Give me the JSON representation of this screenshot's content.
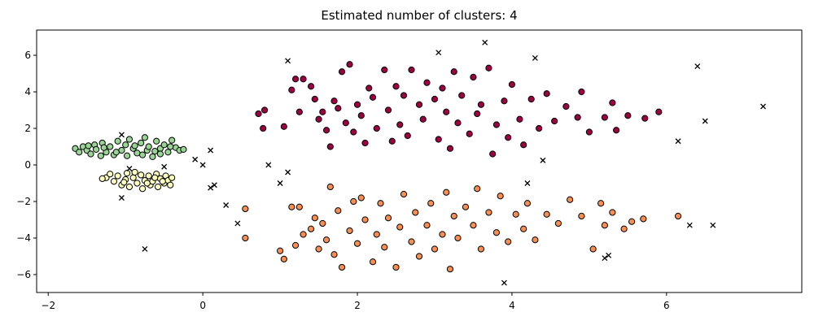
{
  "chart_data": {
    "type": "scatter",
    "title": "Estimated number of clusters: 4",
    "xlim": [
      -2.15,
      7.75
    ],
    "ylim": [
      -6.98,
      7.38
    ],
    "xticks": [
      {
        "value": -2,
        "label": "−2"
      },
      0,
      2,
      4,
      6
    ],
    "yticks": [
      {
        "value": -6,
        "label": "−6"
      },
      {
        "value": -4,
        "label": "−4"
      },
      {
        "value": -2,
        "label": "−2"
      },
      0,
      2,
      4,
      6
    ],
    "series": [
      {
        "color": "#9e0142",
        "marker": "o",
        "x": [
          0.72,
          0.78,
          0.8,
          1.05,
          1.15,
          1.2,
          1.25,
          1.3,
          1.4,
          1.45,
          1.5,
          1.55,
          1.6,
          1.65,
          1.7,
          1.75,
          1.8,
          1.85,
          1.9,
          1.95,
          2.0,
          2.05,
          2.1,
          2.15,
          2.2,
          2.25,
          2.35,
          2.4,
          2.45,
          2.5,
          2.55,
          2.6,
          2.65,
          2.7,
          2.8,
          2.85,
          2.9,
          3.0,
          3.05,
          3.1,
          3.15,
          3.2,
          3.25,
          3.3,
          3.35,
          3.45,
          3.5,
          3.55,
          3.6,
          3.7,
          3.75,
          3.8,
          3.9,
          3.95,
          4.0,
          4.1,
          4.15,
          4.25,
          4.35,
          4.45,
          4.55,
          4.7,
          4.85,
          4.9,
          5.0,
          5.2,
          5.3,
          5.35,
          5.5,
          5.72,
          5.9
        ],
        "y": [
          2.8,
          2.0,
          3.0,
          2.1,
          4.1,
          4.7,
          2.9,
          4.7,
          4.3,
          3.6,
          2.5,
          2.9,
          1.9,
          1.0,
          3.5,
          3.1,
          5.1,
          2.3,
          5.5,
          1.8,
          3.3,
          2.7,
          1.2,
          4.2,
          3.7,
          2.0,
          5.2,
          3.0,
          1.3,
          4.3,
          2.2,
          3.8,
          1.6,
          5.2,
          3.3,
          2.5,
          4.5,
          3.6,
          1.4,
          4.2,
          2.9,
          0.9,
          5.1,
          2.3,
          3.8,
          1.7,
          4.8,
          2.8,
          3.3,
          5.3,
          0.6,
          2.2,
          3.5,
          1.5,
          4.4,
          2.5,
          1.1,
          3.6,
          2.0,
          3.9,
          2.4,
          3.2,
          2.6,
          4.0,
          1.8,
          2.6,
          3.4,
          1.9,
          2.7,
          2.55,
          2.9
        ]
      },
      {
        "color": "#f98e52",
        "marker": "o",
        "x": [
          0.55,
          0.55,
          1.0,
          1.05,
          1.15,
          1.2,
          1.25,
          1.3,
          1.4,
          1.45,
          1.5,
          1.55,
          1.6,
          1.65,
          1.7,
          1.75,
          1.8,
          1.9,
          1.95,
          2.0,
          2.05,
          2.1,
          2.2,
          2.25,
          2.3,
          2.35,
          2.4,
          2.5,
          2.55,
          2.6,
          2.7,
          2.75,
          2.8,
          2.9,
          2.95,
          3.0,
          3.1,
          3.15,
          3.2,
          3.25,
          3.3,
          3.4,
          3.5,
          3.55,
          3.6,
          3.7,
          3.8,
          3.85,
          3.95,
          4.05,
          4.15,
          4.2,
          4.3,
          4.45,
          4.6,
          4.75,
          4.9,
          5.05,
          5.15,
          5.2,
          5.3,
          5.45,
          5.55,
          5.7,
          6.15
        ],
        "y": [
          -2.4,
          -4.0,
          -4.7,
          -5.15,
          -2.3,
          -4.4,
          -2.3,
          -3.8,
          -3.5,
          -2.9,
          -4.6,
          -3.2,
          -4.1,
          -1.2,
          -4.9,
          -2.5,
          -5.6,
          -3.6,
          -2.0,
          -4.3,
          -1.8,
          -3.0,
          -5.3,
          -3.8,
          -2.1,
          -4.5,
          -2.9,
          -5.6,
          -3.4,
          -1.6,
          -4.2,
          -2.6,
          -5.0,
          -3.3,
          -2.1,
          -4.6,
          -3.8,
          -1.5,
          -5.7,
          -2.8,
          -4.0,
          -2.3,
          -3.3,
          -1.3,
          -4.6,
          -2.6,
          -3.7,
          -1.7,
          -4.2,
          -2.7,
          -3.5,
          -2.1,
          -4.1,
          -2.7,
          -3.2,
          -1.9,
          -2.8,
          -4.6,
          -2.1,
          -3.3,
          -2.6,
          -3.5,
          -3.1,
          -2.95,
          -2.8
        ]
      },
      {
        "color": "#ffffbf",
        "marker": "o",
        "x": [
          -1.25,
          -1.2,
          -1.15,
          -1.1,
          -1.05,
          -1.0,
          -0.98,
          -0.95,
          -0.9,
          -0.85,
          -0.8,
          -0.78,
          -0.75,
          -0.7,
          -0.68,
          -0.65,
          -0.6,
          -0.58,
          -0.55,
          -0.5,
          -0.48,
          -0.45,
          -0.42,
          -0.4,
          -0.88,
          -1.02,
          -0.72,
          -0.62,
          -1.3,
          -0.52
        ],
        "y": [
          -0.7,
          -0.5,
          -0.9,
          -0.6,
          -1.1,
          -0.8,
          -0.45,
          -1.2,
          -0.7,
          -1.0,
          -0.55,
          -1.3,
          -0.85,
          -0.6,
          -1.1,
          -0.9,
          -0.5,
          -1.2,
          -0.75,
          -1.0,
          -0.6,
          -0.85,
          -1.1,
          -0.7,
          -0.4,
          -0.95,
          -1.0,
          -0.7,
          -0.75,
          -0.9
        ]
      },
      {
        "color": "#99d594",
        "marker": "o",
        "x": [
          -1.65,
          -1.6,
          -1.55,
          -1.5,
          -1.45,
          -1.4,
          -1.38,
          -1.32,
          -1.3,
          -1.25,
          -1.2,
          -1.15,
          -1.1,
          -1.05,
          -1.0,
          -0.98,
          -0.95,
          -0.9,
          -0.85,
          -0.8,
          -0.75,
          -0.72,
          -0.7,
          -0.65,
          -0.6,
          -0.55,
          -0.5,
          -0.45,
          -0.4,
          -0.35,
          -0.3,
          -0.25,
          -0.55,
          -1.28,
          -1.12,
          -0.88,
          -0.78,
          -1.48,
          -0.62,
          -0.42
        ],
        "y": [
          0.9,
          0.7,
          1.0,
          0.8,
          0.6,
          1.1,
          0.85,
          0.5,
          1.2,
          0.7,
          1.0,
          0.55,
          1.3,
          0.8,
          1.1,
          0.5,
          1.4,
          0.9,
          0.65,
          1.2,
          1.5,
          0.8,
          1.0,
          0.45,
          1.3,
          0.9,
          1.1,
          0.7,
          1.35,
          0.95,
          0.8,
          0.85,
          0.6,
          0.95,
          0.7,
          1.05,
          0.55,
          1.05,
          0.75,
          1.0
        ]
      },
      {
        "color": "#000000",
        "marker": "x",
        "x": [
          -1.05,
          -0.75,
          -1.05,
          -0.5,
          -0.1,
          0.0,
          0.1,
          0.1,
          0.15,
          0.3,
          0.45,
          0.85,
          1.0,
          1.1,
          1.1,
          3.05,
          3.65,
          4.3,
          4.4,
          4.2,
          3.9,
          5.2,
          5.25,
          6.15,
          6.3,
          6.4,
          6.5,
          6.6,
          7.25,
          -0.95
        ],
        "y": [
          1.65,
          -4.6,
          -1.8,
          -0.1,
          0.3,
          0.0,
          0.8,
          -1.25,
          -1.1,
          -2.2,
          -3.2,
          0.0,
          -1.0,
          -0.4,
          5.7,
          6.15,
          6.7,
          5.85,
          0.25,
          -1.0,
          -6.45,
          -5.1,
          -4.95,
          1.3,
          -3.3,
          5.4,
          2.4,
          -3.3,
          3.2,
          -0.2
        ]
      }
    ]
  }
}
